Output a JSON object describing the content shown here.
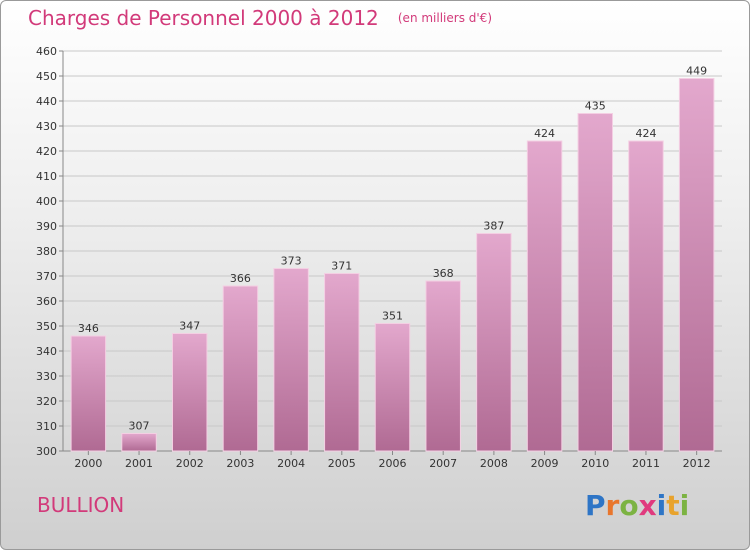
{
  "header": {
    "title": "Charges de Personnel 2000 à 2012",
    "subtitle": "(en milliers d'€)"
  },
  "footer": {
    "commune": "BULLION",
    "logo_text": "Proxiti",
    "logo_letters": [
      {
        "char": "P",
        "color": "#2e75c6"
      },
      {
        "char": "r",
        "color": "#e8762d"
      },
      {
        "char": "o",
        "color": "#7cb342"
      },
      {
        "char": "x",
        "color": "#e03a7e"
      },
      {
        "char": "i",
        "color": "#2e75c6"
      },
      {
        "char": "t",
        "color": "#e8a32d"
      },
      {
        "char": "i",
        "color": "#7cb342"
      }
    ]
  },
  "colors": {
    "accent": "#d23a7a",
    "bar_top": "#e3a8cd",
    "bar_bottom": "#b06a93",
    "bar_edge": "#f4cfe3",
    "grid": "#c8c8c8",
    "axis": "#888888"
  },
  "chart_data": {
    "type": "bar",
    "title": "Charges de Personnel 2000 à 2012",
    "subtitle": "(en milliers d'€)",
    "xlabel": "",
    "ylabel": "",
    "categories": [
      "2000",
      "2001",
      "2002",
      "2003",
      "2004",
      "2005",
      "2006",
      "2007",
      "2008",
      "2009",
      "2010",
      "2011",
      "2012"
    ],
    "values": [
      346,
      307,
      347,
      366,
      373,
      371,
      351,
      368,
      387,
      424,
      435,
      424,
      449
    ],
    "ylim": [
      300,
      460
    ],
    "yticks": [
      300,
      310,
      320,
      330,
      340,
      350,
      360,
      370,
      380,
      390,
      400,
      410,
      420,
      430,
      440,
      450,
      460
    ],
    "grid": true,
    "legend": "none"
  }
}
